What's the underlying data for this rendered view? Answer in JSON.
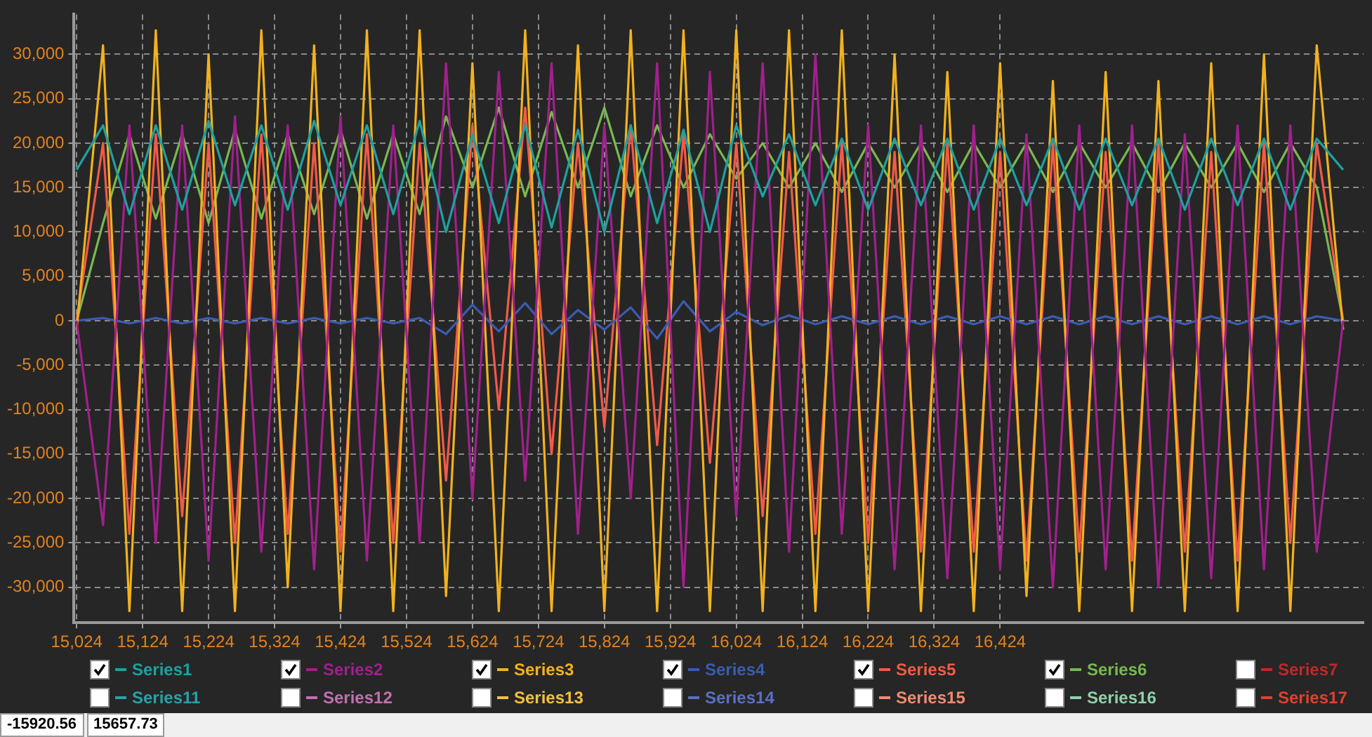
{
  "chart_data": {
    "type": "line",
    "x": [
      15024,
      15064,
      15104,
      15144,
      15184,
      15224,
      15264,
      15304,
      15344,
      15384,
      15424,
      15464,
      15504,
      15544,
      15584,
      15624,
      15664,
      15704,
      15744,
      15784,
      15824,
      15864,
      15904,
      15944,
      15984,
      16024,
      16064,
      16104,
      16144,
      16184,
      16224,
      16264,
      16304,
      16344,
      16384,
      16424,
      16464,
      16504,
      16544,
      16584,
      16624,
      16664,
      16704,
      16744,
      16784,
      16824,
      16864,
      16904,
      16944
    ],
    "series": [
      {
        "name": "Series1",
        "color": "#1fa0a0",
        "values": [
          17000,
          22000,
          12000,
          22000,
          12500,
          22500,
          13000,
          22000,
          12500,
          22500,
          13000,
          22000,
          12000,
          22500,
          10000,
          21000,
          11000,
          22000,
          10500,
          21500,
          10000,
          22000,
          11000,
          21500,
          10000,
          22000,
          14000,
          21000,
          13000,
          20500,
          12500,
          20500,
          13000,
          20500,
          12500,
          20500,
          13000,
          20500,
          12500,
          20500,
          13000,
          20500,
          12500,
          20500,
          13000,
          20500,
          12500,
          20500,
          17000
        ]
      },
      {
        "name": "Series2",
        "color": "#a0208c",
        "values": [
          0,
          -23000,
          22000,
          -25000,
          22000,
          -27000,
          23000,
          -26000,
          22000,
          -28000,
          23000,
          -27000,
          22000,
          -25000,
          29000,
          -20000,
          28000,
          -18000,
          29000,
          -24000,
          22000,
          -20000,
          29000,
          -30000,
          28000,
          -22000,
          29000,
          -26000,
          30000,
          -24000,
          22000,
          -28000,
          22000,
          -29000,
          22000,
          -28000,
          21000,
          -30000,
          22000,
          -28000,
          22000,
          -30000,
          21000,
          -29000,
          22000,
          -28000,
          22000,
          -26000,
          0
        ]
      },
      {
        "name": "Series3",
        "color": "#f2b21e",
        "values": [
          -1000,
          31000,
          -32700,
          32700,
          -32700,
          30000,
          -32700,
          32700,
          -30000,
          31000,
          -32700,
          32700,
          -32700,
          32700,
          -31000,
          29000,
          -32700,
          32700,
          -32700,
          31000,
          -32700,
          32700,
          -32700,
          32700,
          -32700,
          32700,
          -32700,
          32700,
          -32700,
          32700,
          -32700,
          30000,
          -32700,
          28000,
          -32700,
          29000,
          -31000,
          27000,
          -32700,
          28000,
          -32700,
          27000,
          -32700,
          29000,
          -32700,
          30000,
          -32700,
          31000,
          -1000
        ]
      },
      {
        "name": "Series4",
        "color": "#3a5cb0",
        "values": [
          0,
          300,
          -300,
          300,
          -300,
          300,
          -300,
          300,
          -300,
          300,
          -300,
          300,
          -300,
          300,
          -1500,
          1800,
          -1200,
          2000,
          -1500,
          1200,
          -1000,
          1500,
          -2000,
          2200,
          -1200,
          1000,
          -500,
          600,
          -400,
          500,
          -400,
          500,
          -400,
          500,
          -400,
          500,
          -400,
          500,
          -400,
          500,
          -400,
          500,
          -400,
          500,
          -400,
          500,
          -400,
          500,
          0
        ]
      },
      {
        "name": "Series5",
        "color": "#f25a48",
        "values": [
          0,
          20000,
          -24000,
          21000,
          -22000,
          20000,
          -25000,
          21000,
          -24000,
          20000,
          -26000,
          21000,
          -25000,
          20000,
          -18000,
          22000,
          -10000,
          24000,
          -15000,
          20000,
          -12000,
          22000,
          -14000,
          21000,
          -16000,
          20000,
          -22000,
          19000,
          -24000,
          20000,
          -25000,
          19000,
          -26000,
          20000,
          -26000,
          19000,
          -27000,
          20000,
          -26000,
          19000,
          -27000,
          20000,
          -26000,
          19000,
          -27000,
          20000,
          -25000,
          20000,
          0
        ]
      },
      {
        "name": "Series6",
        "color": "#78b850",
        "values": [
          0,
          11000,
          21000,
          11500,
          21000,
          11000,
          21500,
          11500,
          21000,
          12000,
          21500,
          11500,
          21000,
          12000,
          23000,
          15000,
          24000,
          14000,
          23500,
          15000,
          24000,
          14000,
          22000,
          15000,
          21000,
          16000,
          20000,
          15000,
          20000,
          14500,
          20000,
          15000,
          20000,
          14500,
          20000,
          15000,
          20000,
          14500,
          20000,
          15000,
          20000,
          14500,
          20000,
          15000,
          20000,
          14500,
          20000,
          15000,
          0
        ]
      },
      {
        "name": "Series7",
        "color": "#c0282a",
        "values": [
          null,
          null,
          null,
          null,
          null,
          null,
          null,
          null,
          null,
          null,
          null,
          null,
          null,
          null,
          null,
          null,
          null,
          null,
          null,
          null,
          null,
          null,
          null,
          null,
          null,
          null,
          null,
          null,
          null,
          null,
          null,
          null,
          null,
          null,
          null,
          null,
          null,
          null,
          null,
          null,
          null,
          null,
          null,
          null,
          null,
          null,
          null,
          null,
          null
        ]
      },
      {
        "name": "Series11",
        "color": "#2aa0a8",
        "values": [
          null,
          null,
          null,
          null,
          null,
          null,
          null,
          null,
          null,
          null,
          null,
          null,
          null,
          null,
          null,
          null,
          null,
          null,
          null,
          null,
          null,
          null,
          null,
          null,
          null,
          null,
          null,
          null,
          null,
          null,
          null,
          null,
          null,
          null,
          null,
          null,
          null,
          null,
          null,
          null,
          null,
          null,
          null,
          null,
          null,
          null,
          null,
          null,
          null
        ]
      },
      {
        "name": "Series12",
        "color": "#c070b0",
        "values": [
          null,
          null,
          null,
          null,
          null,
          null,
          null,
          null,
          null,
          null,
          null,
          null,
          null,
          null,
          null,
          null,
          null,
          null,
          null,
          null,
          null,
          null,
          null,
          null,
          null,
          null,
          null,
          null,
          null,
          null,
          null,
          null,
          null,
          null,
          null,
          null,
          null,
          null,
          null,
          null,
          null,
          null,
          null,
          null,
          null,
          null,
          null,
          null,
          null
        ]
      },
      {
        "name": "Series13",
        "color": "#f0c040",
        "values": [
          null,
          null,
          null,
          null,
          null,
          null,
          null,
          null,
          null,
          null,
          null,
          null,
          null,
          null,
          null,
          null,
          null,
          null,
          null,
          null,
          null,
          null,
          null,
          null,
          null,
          null,
          null,
          null,
          null,
          null,
          null,
          null,
          null,
          null,
          null,
          null,
          null,
          null,
          null,
          null,
          null,
          null,
          null,
          null,
          null,
          null,
          null,
          null,
          null
        ]
      },
      {
        "name": "Series14",
        "color": "#5a70c0",
        "values": [
          null,
          null,
          null,
          null,
          null,
          null,
          null,
          null,
          null,
          null,
          null,
          null,
          null,
          null,
          null,
          null,
          null,
          null,
          null,
          null,
          null,
          null,
          null,
          null,
          null,
          null,
          null,
          null,
          null,
          null,
          null,
          null,
          null,
          null,
          null,
          null,
          null,
          null,
          null,
          null,
          null,
          null,
          null,
          null,
          null,
          null,
          null,
          null,
          null
        ]
      },
      {
        "name": "Series15",
        "color": "#f08a70",
        "values": [
          null,
          null,
          null,
          null,
          null,
          null,
          null,
          null,
          null,
          null,
          null,
          null,
          null,
          null,
          null,
          null,
          null,
          null,
          null,
          null,
          null,
          null,
          null,
          null,
          null,
          null,
          null,
          null,
          null,
          null,
          null,
          null,
          null,
          null,
          null,
          null,
          null,
          null,
          null,
          null,
          null,
          null,
          null,
          null,
          null,
          null,
          null,
          null,
          null
        ]
      },
      {
        "name": "Series16",
        "color": "#90d0a8",
        "values": [
          null,
          null,
          null,
          null,
          null,
          null,
          null,
          null,
          null,
          null,
          null,
          null,
          null,
          null,
          null,
          null,
          null,
          null,
          null,
          null,
          null,
          null,
          null,
          null,
          null,
          null,
          null,
          null,
          null,
          null,
          null,
          null,
          null,
          null,
          null,
          null,
          null,
          null,
          null,
          null,
          null,
          null,
          null,
          null,
          null,
          null,
          null,
          null,
          null
        ]
      },
      {
        "name": "Series17",
        "color": "#e04030",
        "values": [
          null,
          null,
          null,
          null,
          null,
          null,
          null,
          null,
          null,
          null,
          null,
          null,
          null,
          null,
          null,
          null,
          null,
          null,
          null,
          null,
          null,
          null,
          null,
          null,
          null,
          null,
          null,
          null,
          null,
          null,
          null,
          null,
          null,
          null,
          null,
          null,
          null,
          null,
          null,
          null,
          null,
          null,
          null,
          null,
          null,
          null,
          null,
          null,
          null
        ]
      }
    ],
    "xlim": [
      15020,
      16975
    ],
    "xticks": [
      {
        "value": 15024,
        "label": "15,024"
      },
      {
        "value": 15124,
        "label": "15,124"
      },
      {
        "value": 15224,
        "label": "15,224"
      },
      {
        "value": 15324,
        "label": "15,324"
      },
      {
        "value": 15424,
        "label": "15,424"
      },
      {
        "value": 15524,
        "label": "15,524"
      },
      {
        "value": 15624,
        "label": "15,624"
      },
      {
        "value": 15724,
        "label": "15,724"
      },
      {
        "value": 15824,
        "label": "15,824"
      },
      {
        "value": 15924,
        "label": "15,924"
      },
      {
        "value": 16024,
        "label": "16,024"
      },
      {
        "value": 16124,
        "label": "16,124"
      },
      {
        "value": 16224,
        "label": "16,224"
      },
      {
        "value": 16324,
        "label": "16,324"
      },
      {
        "value": 16424,
        "label": "16,424"
      }
    ],
    "ylim": [
      -34000,
      34500
    ],
    "yticks": [
      {
        "value": -30000,
        "label": "-30,000"
      },
      {
        "value": -25000,
        "label": "-25,000"
      },
      {
        "value": -20000,
        "label": "-20,000"
      },
      {
        "value": -15000,
        "label": "-15,000"
      },
      {
        "value": -10000,
        "label": "-10,000"
      },
      {
        "value": -5000,
        "label": "-5,000"
      },
      0,
      {
        "value": 5000,
        "label": "5,000"
      },
      {
        "value": 10000,
        "label": "10,000"
      },
      {
        "value": 15000,
        "label": "15,000"
      },
      {
        "value": 20000,
        "label": "20,000"
      },
      {
        "value": 25000,
        "label": "25,000"
      },
      {
        "value": 30000,
        "label": "30,000"
      }
    ],
    "grid": true,
    "legend": "bottom",
    "marker": "none",
    "line_style": "solid",
    "annotations": [
      "-15920.56",
      "15657.73"
    ]
  }
}
